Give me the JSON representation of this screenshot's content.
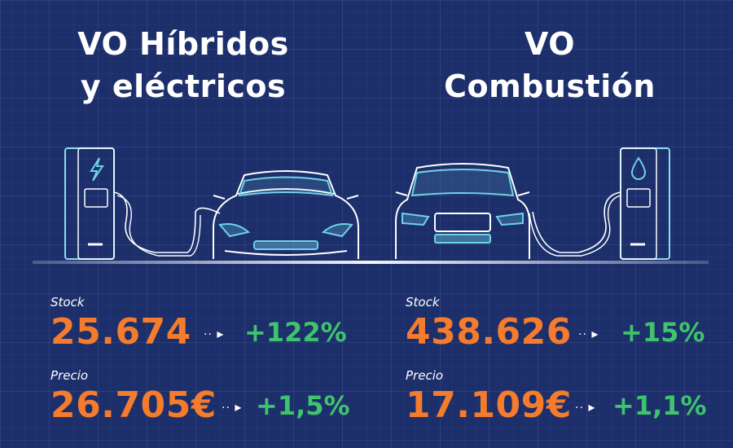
{
  "left": {
    "title_line1": "VO Híbridos",
    "title_line2": "y eléctricos",
    "stock_label": "Stock",
    "stock_value": "25.674",
    "stock_change": "+122%",
    "price_label": "Precio",
    "price_value": "26.705€",
    "price_change": "+1,5%"
  },
  "right": {
    "title_line1": "VO",
    "title_line2": "Combustión",
    "stock_label": "Stock",
    "stock_value": "438.626",
    "stock_change": "+15%",
    "price_label": "Precio",
    "price_value": "17.109€",
    "price_change": "+1,1%"
  },
  "icons": {
    "left_charger": "lightning-bolt-icon",
    "right_pump": "fuel-drop-icon",
    "arrow": "dotted-arrow-icon"
  },
  "colors": {
    "background": "#1d2f6b",
    "value": "#f47c2c",
    "change": "#3ec46d",
    "line_art": "#6fd2e6"
  }
}
